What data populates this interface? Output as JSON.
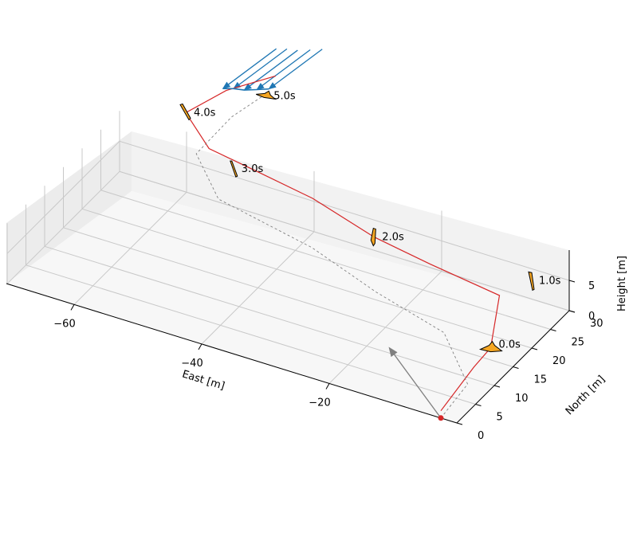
{
  "chart_data": {
    "type": "line",
    "projection": "3d",
    "xlabel": "East [m]",
    "ylabel": "North [m]",
    "zlabel": "Height [m]",
    "x_ticks": [
      "−60",
      "−40",
      "−20"
    ],
    "y_ticks": [
      "0",
      "5",
      "10",
      "15",
      "20",
      "25",
      "30"
    ],
    "z_ticks": [
      "0",
      "5"
    ],
    "grid": true,
    "series": [
      {
        "role": "flown trajectory",
        "color": "#d62728",
        "style": "solid",
        "points_east_north_height": [
          [
            -2.5,
            0.0,
            1.2
          ],
          [
            -3.2,
            10.0,
            2.0
          ],
          [
            -3.5,
            15.0,
            2.0
          ],
          [
            -8.0,
            25.0,
            3.0
          ],
          [
            -20.0,
            27.0,
            3.0
          ],
          [
            -30.0,
            29.0,
            3.0
          ],
          [
            -42.0,
            33.0,
            3.0
          ],
          [
            -52.0,
            35.0,
            3.0
          ],
          [
            -60.0,
            36.0,
            3.5
          ],
          [
            -66.0,
            40.0,
            5.0
          ],
          [
            -62.0,
            44.0,
            7.5
          ],
          [
            -56.0,
            47.0,
            10.0
          ]
        ]
      },
      {
        "role": "reference path",
        "color": "#808080",
        "style": "dashed",
        "points_east_north_height": [
          [
            -2.5,
            0.0,
            0.0
          ],
          [
            -3.0,
            8.0,
            0.5
          ],
          [
            -12.0,
            17.0,
            0.5
          ],
          [
            -25.0,
            21.0,
            0.5
          ],
          [
            -38.0,
            26.0,
            0.5
          ],
          [
            -55.0,
            30.0,
            0.5
          ],
          [
            -62.0,
            36.0,
            2.0
          ],
          [
            -60.0,
            42.0,
            5.0
          ],
          [
            -57.0,
            45.0,
            7.5
          ]
        ]
      },
      {
        "role": "final approach profile",
        "color": "#1f77b4",
        "style": "solid",
        "points_east_north_height": [
          [
            -59.0,
            38.0,
            12.5
          ],
          [
            -58.8,
            40.5,
            11.0
          ],
          [
            -58.3,
            42.5,
            9.7
          ],
          [
            -57.5,
            44.5,
            8.8
          ],
          [
            -56.5,
            46.0,
            8.3
          ]
        ]
      }
    ],
    "wind_vectors": {
      "color": "#1f77b4",
      "count": 5
    },
    "heading_arrow": {
      "color": "#808080",
      "start_east_north_height": [
        -2.5,
        0.0,
        0.0
      ],
      "end_east_north_height": [
        -17.0,
        11.0,
        0.0
      ]
    },
    "start_marker": {
      "color": "#d62728",
      "east_north_height": [
        -2.5,
        0.0,
        0.0
      ]
    },
    "aircraft_snapshots": [
      {
        "time": "0.0s",
        "east_north_height": [
          -3.5,
          15.0,
          2.0
        ],
        "fill": "#f5a623"
      },
      {
        "time": "1.0s",
        "east_north_height": [
          -6.0,
          30.0,
          3.0
        ],
        "fill": "#f5a623"
      },
      {
        "time": "2.0s",
        "east_north_height": [
          -30.0,
          29.0,
          3.0
        ],
        "fill": "#f5a623"
      },
      {
        "time": "3.0s",
        "east_north_height": [
          -55.0,
          34.0,
          3.0
        ],
        "fill": "#f5a623"
      },
      {
        "time": "4.0s",
        "east_north_height": [
          -66.0,
          40.0,
          5.0
        ],
        "fill": "#f5a623"
      },
      {
        "time": "5.0s",
        "east_north_height": [
          -57.0,
          46.0,
          7.0
        ],
        "fill": "#f5a623"
      }
    ]
  }
}
